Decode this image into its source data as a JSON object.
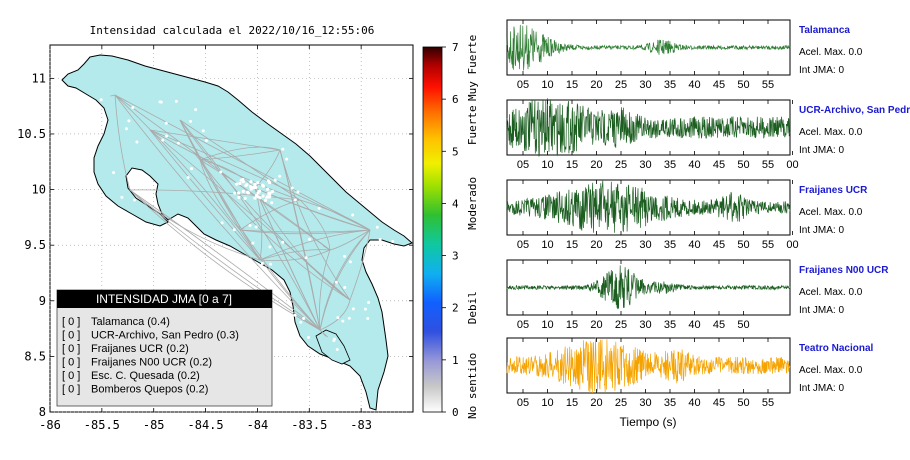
{
  "map": {
    "title": "Intensidad calculada el 2022/10/16_12:55:06",
    "x_ticks": [
      "-86",
      "-85.5",
      "-85",
      "-84.5",
      "-84",
      "-83.5",
      "-83"
    ],
    "y_ticks": [
      "11",
      "10.5",
      "10",
      "9.5",
      "9",
      "8.5",
      "8"
    ],
    "xlim": [
      -86,
      -82.5
    ],
    "ylim": [
      8,
      11.3
    ],
    "land_color": "#b4eaec"
  },
  "colorbar": {
    "ticks": [
      "0",
      "1",
      "2",
      "3",
      "4",
      "5",
      "6",
      "7"
    ],
    "labels": [
      "No sentido",
      "Debil",
      "Moderado",
      "Fuerte",
      "Muy Fuerte"
    ]
  },
  "legend": {
    "title": "INTENSIDAD JMA [0 a 7]",
    "items": [
      {
        "badge": "[ 0 ]",
        "label": "Talamanca (0.4)"
      },
      {
        "badge": "[ 0 ]",
        "label": "UCR-Archivo, San Pedro (0.3)"
      },
      {
        "badge": "[ 0 ]",
        "label": "Fraijanes UCR (0.2)"
      },
      {
        "badge": "[ 0 ]",
        "label": "Fraijanes N00 UCR (0.2)"
      },
      {
        "badge": "[ 0 ]",
        "label": "Esc. C. Quesada (0.2)"
      },
      {
        "badge": "[ 0 ]",
        "label": "Bomberos Quepos (0.2)"
      }
    ]
  },
  "traces": [
    {
      "station": "Talamanca",
      "acel": "Acel. Max. 0.0",
      "jma": "Int JMA: 0",
      "color": "#2e7d32",
      "ticks": [
        "05",
        "10",
        "15",
        "20",
        "25",
        "30",
        "35",
        "40",
        "45",
        "50",
        "55"
      ]
    },
    {
      "station": "UCR-Archivo, San Pedro",
      "acel": "Acel. Max. 0.0",
      "jma": "Int JMA: 0",
      "color": "#1b5e20",
      "ticks": [
        "05",
        "10",
        "15",
        "20",
        "25",
        "30",
        "35",
        "40",
        "45",
        "50",
        "55",
        "00"
      ]
    },
    {
      "station": "Fraijanes UCR",
      "acel": "Acel. Max. 0.0",
      "jma": "Int JMA: 0",
      "color": "#1b5e20",
      "ticks": [
        "05",
        "10",
        "15",
        "20",
        "25",
        "30",
        "35",
        "40",
        "45",
        "50",
        "55",
        "00"
      ]
    },
    {
      "station": "Fraijanes N00 UCR",
      "acel": "Acel. Max. 0.0",
      "jma": "Int JMA: 0",
      "color": "#1b5e20",
      "ticks": [
        "05",
        "10",
        "15",
        "20",
        "25",
        "30",
        "35",
        "40",
        "45",
        "50"
      ]
    },
    {
      "station": "Teatro Nacional",
      "acel": "Acel. Max. 0.0",
      "jma": "Int JMA: 0",
      "color": "#f5a300",
      "ticks": [
        "05",
        "10",
        "15",
        "20",
        "25",
        "30",
        "35",
        "40",
        "45",
        "50",
        "55"
      ]
    }
  ],
  "trace_xlabel": "Tiempo (s)",
  "chart_data": [
    {
      "type": "heatmap",
      "title": "Intensidad calculada el 2022/10/16_12:55:06",
      "xlim": [
        -86,
        -82.5
      ],
      "ylim": [
        8,
        11.3
      ],
      "colorbar_range": [
        0,
        7
      ],
      "stations": [
        {
          "name": "Talamanca",
          "intensity": 0.4
        },
        {
          "name": "UCR-Archivo, San Pedro",
          "intensity": 0.3
        },
        {
          "name": "Fraijanes UCR",
          "intensity": 0.2
        },
        {
          "name": "Fraijanes N00 UCR",
          "intensity": 0.2
        },
        {
          "name": "Esc. C. Quesada",
          "intensity": 0.2
        },
        {
          "name": "Bomberos Quepos",
          "intensity": 0.2
        }
      ]
    },
    {
      "type": "line",
      "xlabel": "Tiempo (s)",
      "series": [
        {
          "name": "Talamanca",
          "acel_max": 0.0,
          "int_jma": 0
        },
        {
          "name": "UCR-Archivo, San Pedro",
          "acel_max": 0.0,
          "int_jma": 0
        },
        {
          "name": "Fraijanes UCR",
          "acel_max": 0.0,
          "int_jma": 0
        },
        {
          "name": "Fraijanes N00 UCR",
          "acel_max": 0.0,
          "int_jma": 0
        },
        {
          "name": "Teatro Nacional",
          "acel_max": 0.0,
          "int_jma": 0
        }
      ]
    }
  ]
}
